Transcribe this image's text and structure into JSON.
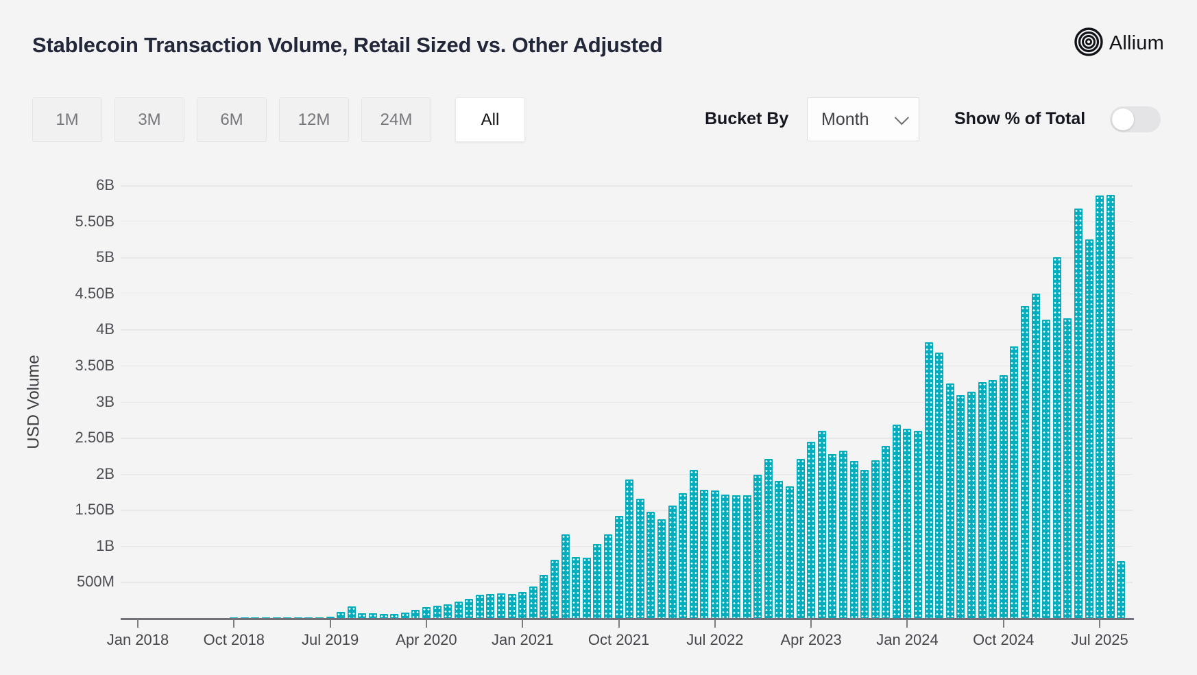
{
  "header": {
    "title": "Stablecoin Transaction Volume, Retail Sized vs. Other Adjusted",
    "brand": "Allium"
  },
  "controls": {
    "range_buttons": [
      {
        "label": "1M",
        "active": false
      },
      {
        "label": "3M",
        "active": false
      },
      {
        "label": "6M",
        "active": false
      },
      {
        "label": "12M",
        "active": false
      },
      {
        "label": "24M",
        "active": false
      },
      {
        "label": "All",
        "active": true
      }
    ],
    "bucket_by_label": "Bucket By",
    "bucket_by_value": "Month",
    "show_pct_label": "Show % of Total",
    "show_pct_on": false
  },
  "colors": {
    "bar": "#00ADBD",
    "background": "#F4F4F5",
    "gridline": "#E7E7E9",
    "axis": "#71717A",
    "title_text": "#222739"
  },
  "chart_data": {
    "type": "bar",
    "title": "Stablecoin Transaction Volume, Retail Sized vs. Other Adjusted",
    "xlabel": "",
    "ylabel": "USD Volume",
    "unit_note": "values in USD millions",
    "ylim_millions": [
      0,
      6000
    ],
    "grid": true,
    "legend": "none",
    "bar_color": "#00ADBD",
    "y_ticks": [
      {
        "label": "6B",
        "value": 6000
      },
      {
        "label": "5.50B",
        "value": 5500
      },
      {
        "label": "5B",
        "value": 5000
      },
      {
        "label": "4.50B",
        "value": 4500
      },
      {
        "label": "4B",
        "value": 4000
      },
      {
        "label": "3.50B",
        "value": 3500
      },
      {
        "label": "3B",
        "value": 3000
      },
      {
        "label": "2.50B",
        "value": 2500
      },
      {
        "label": "2B",
        "value": 2000
      },
      {
        "label": "1.50B",
        "value": 1500
      },
      {
        "label": "1B",
        "value": 1000
      },
      {
        "label": "500M",
        "value": 500
      }
    ],
    "x_tick_labels": [
      {
        "label": "Jan 2018",
        "month_index": 0
      },
      {
        "label": "Oct 2018",
        "month_index": 9
      },
      {
        "label": "Jul 2019",
        "month_index": 18
      },
      {
        "label": "Apr 2020",
        "month_index": 27
      },
      {
        "label": "Jan 2021",
        "month_index": 36
      },
      {
        "label": "Oct 2021",
        "month_index": 45
      },
      {
        "label": "Jul 2022",
        "month_index": 54
      },
      {
        "label": "Apr 2023",
        "month_index": 63
      },
      {
        "label": "Jan 2024",
        "month_index": 72
      },
      {
        "label": "Oct 2024",
        "month_index": 81
      },
      {
        "label": "Jul 2025",
        "month_index": 90
      }
    ],
    "categories": [
      "Jan 2018",
      "Feb 2018",
      "Mar 2018",
      "Apr 2018",
      "May 2018",
      "Jun 2018",
      "Jul 2018",
      "Aug 2018",
      "Sep 2018",
      "Oct 2018",
      "Nov 2018",
      "Dec 2018",
      "Jan 2019",
      "Feb 2019",
      "Mar 2019",
      "Apr 2019",
      "May 2019",
      "Jun 2019",
      "Jul 2019",
      "Aug 2019",
      "Sep 2019",
      "Oct 2019",
      "Nov 2019",
      "Dec 2019",
      "Jan 2020",
      "Feb 2020",
      "Mar 2020",
      "Apr 2020",
      "May 2020",
      "Jun 2020",
      "Jul 2020",
      "Aug 2020",
      "Sep 2020",
      "Oct 2020",
      "Nov 2020",
      "Dec 2020",
      "Jan 2021",
      "Feb 2021",
      "Mar 2021",
      "Apr 2021",
      "May 2021",
      "Jun 2021",
      "Jul 2021",
      "Aug 2021",
      "Sep 2021",
      "Oct 2021",
      "Nov 2021",
      "Dec 2021",
      "Jan 2022",
      "Feb 2022",
      "Mar 2022",
      "Apr 2022",
      "May 2022",
      "Jun 2022",
      "Jul 2022",
      "Aug 2022",
      "Sep 2022",
      "Oct 2022",
      "Nov 2022",
      "Dec 2022",
      "Jan 2023",
      "Feb 2023",
      "Mar 2023",
      "Apr 2023",
      "May 2023",
      "Jun 2023",
      "Jul 2023",
      "Aug 2023",
      "Sep 2023",
      "Oct 2023",
      "Nov 2023",
      "Dec 2023",
      "Jan 2024",
      "Feb 2024",
      "Mar 2024",
      "Apr 2024",
      "May 2024",
      "Jun 2024",
      "Jul 2024",
      "Aug 2024",
      "Sep 2024",
      "Oct 2024",
      "Nov 2024",
      "Dec 2024",
      "Jan 2025",
      "Feb 2025",
      "Mar 2025",
      "Apr 2025",
      "May 2025",
      "Jun 2025",
      "Jul 2025",
      "Aug 2025",
      "Sep 2025"
    ],
    "values_millions": [
      2,
      2,
      2,
      3,
      3,
      3,
      4,
      4,
      4,
      5,
      5,
      6,
      6,
      7,
      8,
      8,
      10,
      12,
      18,
      90,
      160,
      62,
      68,
      55,
      55,
      78,
      117,
      148,
      170,
      190,
      230,
      270,
      320,
      330,
      340,
      330,
      365,
      440,
      600,
      810,
      1160,
      850,
      840,
      1025,
      1160,
      1420,
      1920,
      1650,
      1470,
      1370,
      1560,
      1730,
      2050,
      1780,
      1770,
      1710,
      1700,
      1700,
      1990,
      2210,
      1900,
      1830,
      2210,
      2440,
      2600,
      2270,
      2320,
      2180,
      2050,
      2190,
      2390,
      2680,
      2620,
      2600,
      3820,
      3680,
      3250,
      3090,
      3140,
      3270,
      3300,
      3370,
      3770,
      4330,
      4500,
      4140,
      5000,
      4160,
      5680,
      5250,
      5860,
      5870,
      790
    ]
  }
}
